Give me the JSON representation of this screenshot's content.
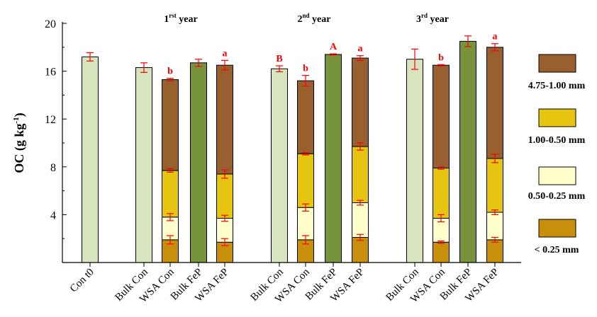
{
  "chart_data": {
    "type": "bar",
    "ylabel": "OC (g kg-1)",
    "ylim": [
      0,
      20
    ],
    "yticks": [
      4,
      8,
      12,
      16,
      20
    ],
    "years": [
      {
        "ord": "1",
        "sup": "rst",
        "word": "year"
      },
      {
        "ord": "2",
        "sup": "nd",
        "word": "year"
      },
      {
        "ord": "3",
        "sup": "rd",
        "word": "year"
      }
    ],
    "categories": [
      "Con t0",
      "Bulk Con",
      "WSA Con",
      "Bulk FeP",
      "WSA FeP",
      "Bulk Con",
      "WSA Con",
      "Bulk FeP",
      "WSA FeP",
      "Bulk Con",
      "WSA Con",
      "Bulk FeP",
      "WSA FeP"
    ],
    "fraction_labels": [
      "4.75-1.00 mm",
      "1.00-0.50 mm",
      "0.50-0.25 mm",
      "< 0.25 mm"
    ],
    "colors": {
      "bulk_con": "#d7e4bd",
      "bulk_fep": "#77933c",
      "f_lt025": "#c8900a",
      "f_025_050": "#ffffcc",
      "f_050_100": "#e6c510",
      "f_100_475": "#98602e",
      "error": "#ff0000",
      "letters": "#ff0000"
    },
    "bars": [
      {
        "kind": "single",
        "color": "bulk_con",
        "value": 17.2,
        "err": 0.35,
        "letter": ""
      },
      {
        "kind": "single",
        "color": "bulk_con",
        "value": 16.3,
        "err": 0.4,
        "letter": ""
      },
      {
        "kind": "stack",
        "cum": [
          1.9,
          3.8,
          7.7,
          15.3
        ],
        "errs": [
          0.35,
          0.3,
          0.15,
          0.1
        ],
        "letter": "b"
      },
      {
        "kind": "single",
        "color": "bulk_fep",
        "value": 16.7,
        "err": 0.3,
        "letter": ""
      },
      {
        "kind": "stack",
        "cum": [
          1.7,
          3.7,
          7.4,
          16.5
        ],
        "errs": [
          0.3,
          0.25,
          0.35,
          0.4
        ],
        "letter": "a"
      },
      {
        "kind": "single",
        "color": "bulk_con",
        "value": 16.2,
        "err": 0.25,
        "letter": "B"
      },
      {
        "kind": "stack",
        "cum": [
          1.9,
          4.6,
          9.1,
          15.2
        ],
        "errs": [
          0.35,
          0.3,
          0.1,
          0.45
        ],
        "letter": "b"
      },
      {
        "kind": "single",
        "color": "bulk_fep",
        "value": 17.4,
        "err": 0.05,
        "letter": "A"
      },
      {
        "kind": "stack",
        "cum": [
          2.1,
          5.0,
          9.7,
          17.1
        ],
        "errs": [
          0.25,
          0.2,
          0.3,
          0.2
        ],
        "letter": "a"
      },
      {
        "kind": "single",
        "color": "bulk_con",
        "value": 17.0,
        "err": 0.85,
        "letter": ""
      },
      {
        "kind": "stack",
        "cum": [
          1.7,
          3.7,
          7.9,
          16.5
        ],
        "errs": [
          0.1,
          0.3,
          0.1,
          0.05
        ],
        "letter": "b"
      },
      {
        "kind": "single",
        "color": "bulk_fep",
        "value": 18.5,
        "err": 0.45,
        "letter": ""
      },
      {
        "kind": "stack",
        "cum": [
          1.9,
          4.2,
          8.7,
          18.0
        ],
        "errs": [
          0.2,
          0.2,
          0.35,
          0.3
        ],
        "letter": "a"
      }
    ]
  }
}
